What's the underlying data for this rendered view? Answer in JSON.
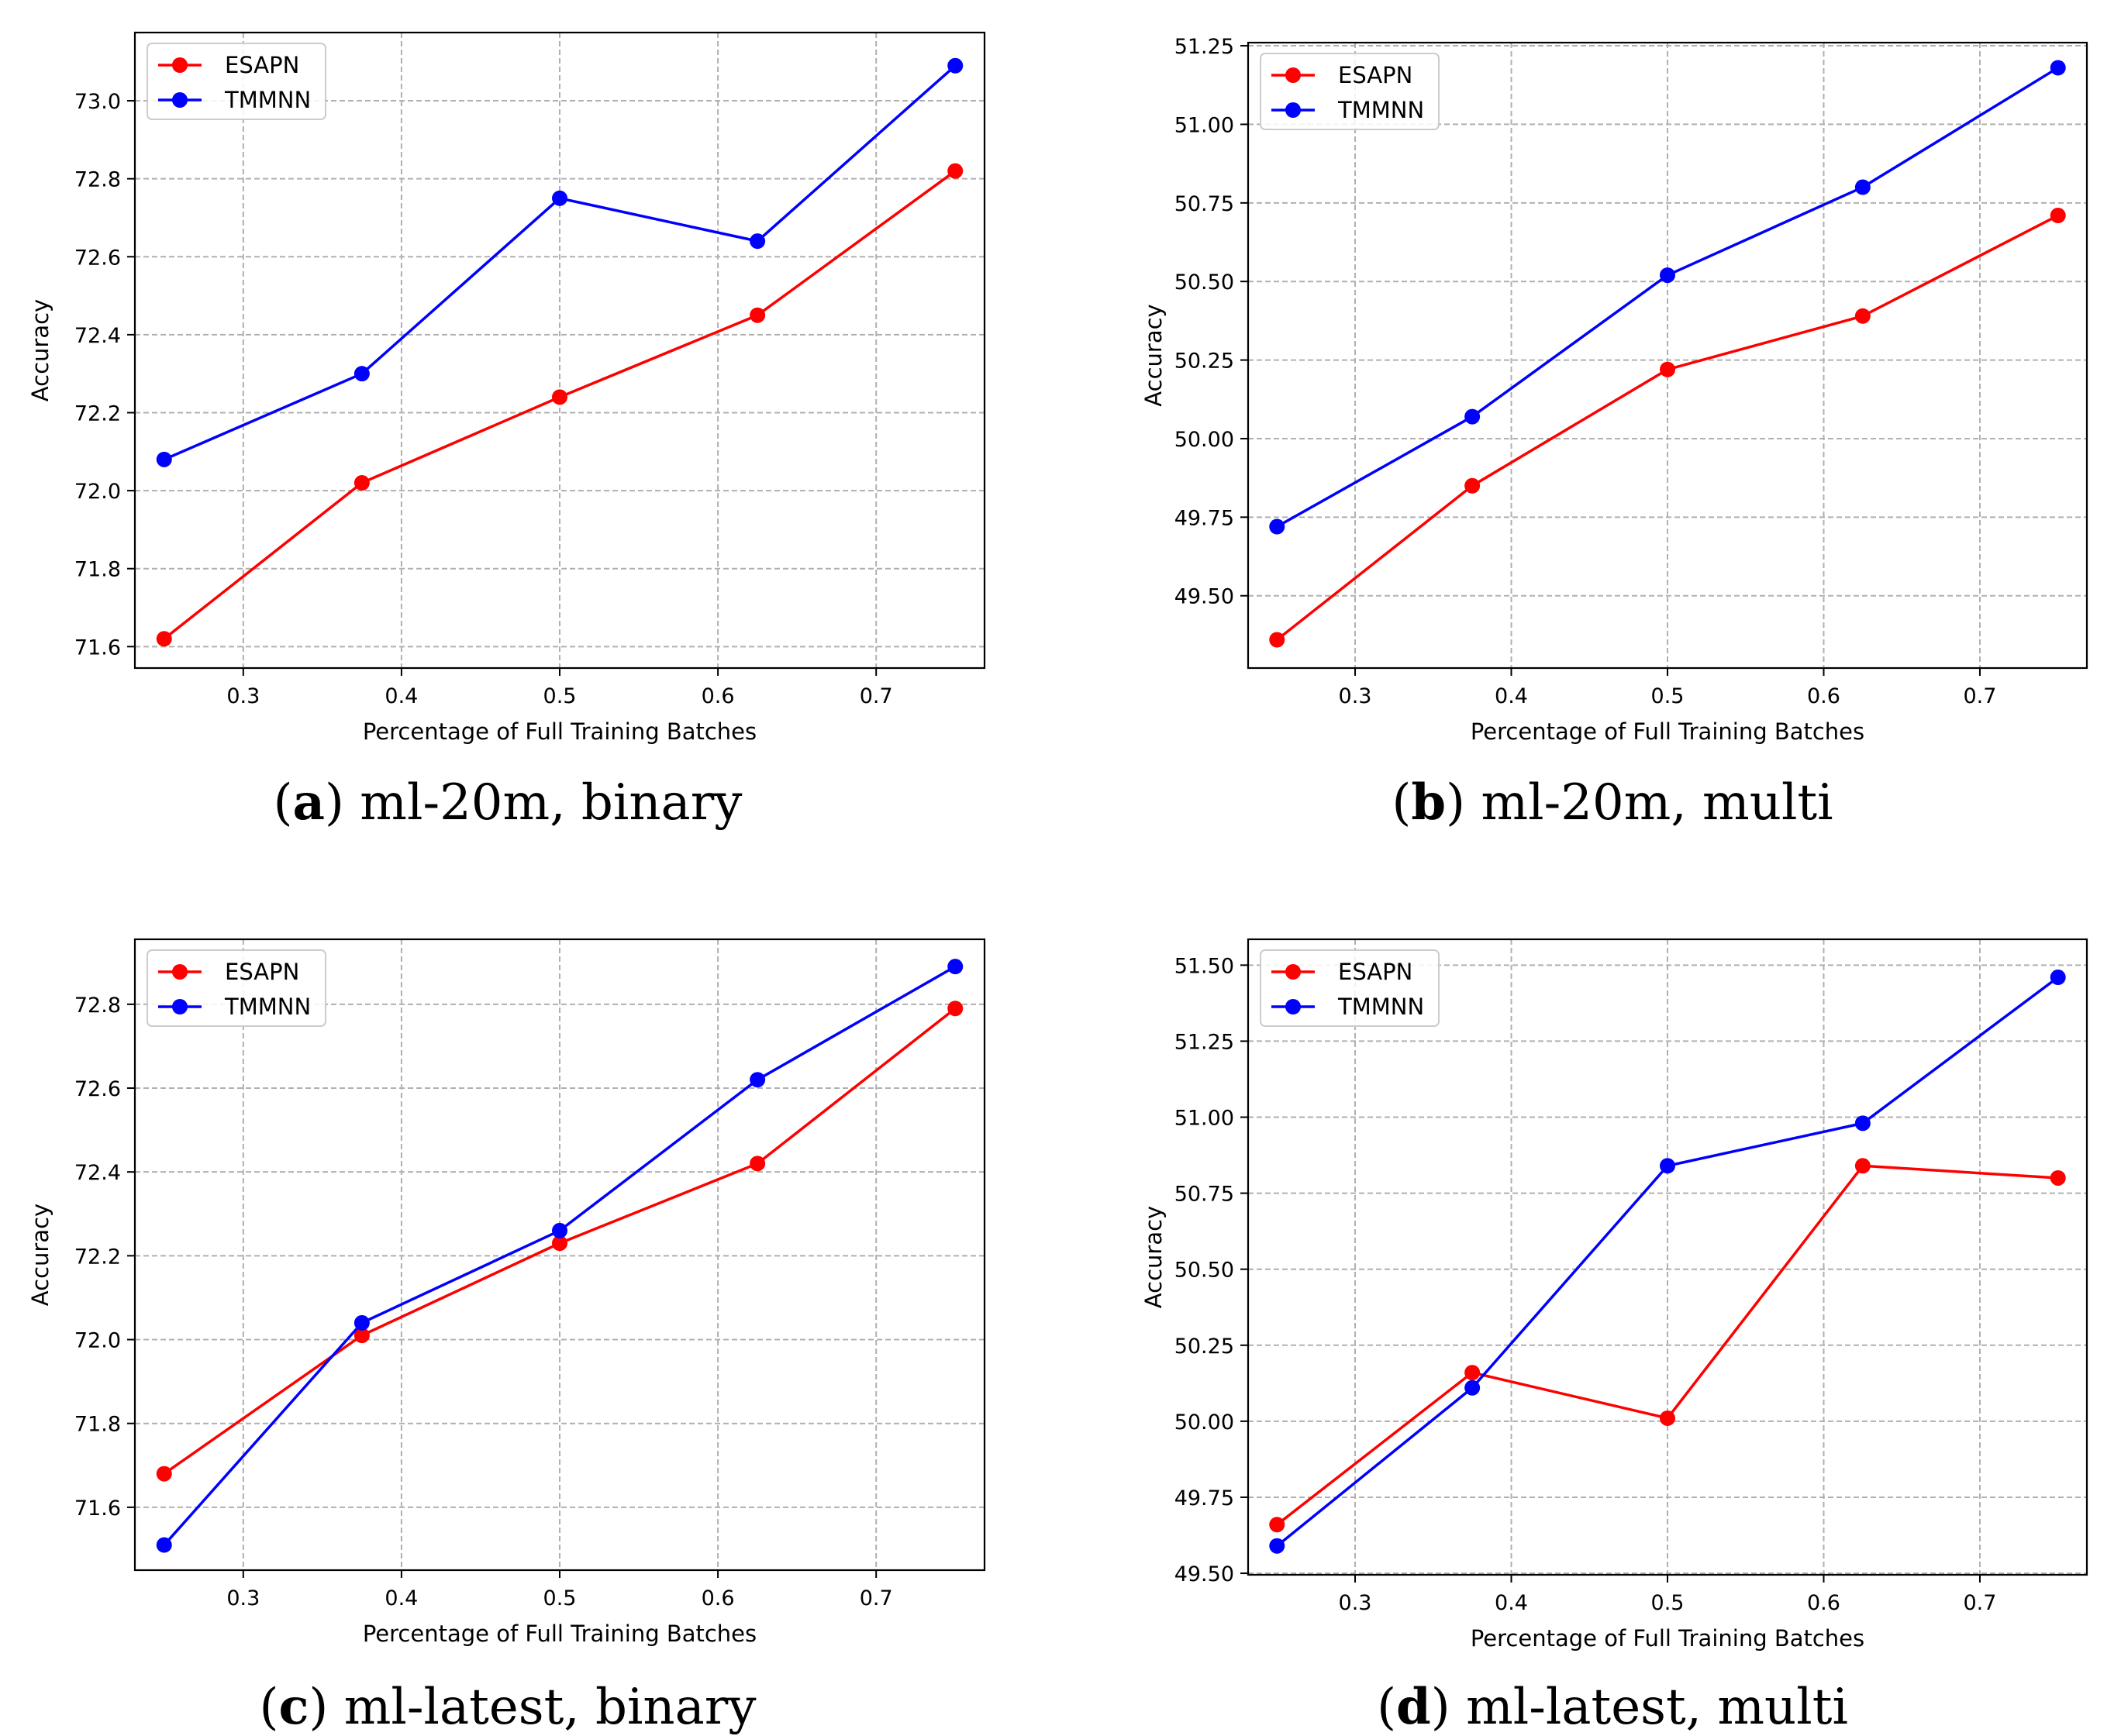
{
  "chart_data": [
    {
      "type": "line",
      "caption": {
        "open": "(",
        "letter": "a",
        "close": ")",
        "text": "ml-20m, binary"
      },
      "xlabel": "Percentage of Full Training Batches",
      "ylabel": "Accuracy",
      "x": [
        0.25,
        0.375,
        0.5,
        0.625,
        0.75
      ],
      "xlim": [
        0.2315,
        0.7685
      ],
      "ylim": [
        71.545,
        73.175
      ],
      "xticks": [
        0.3,
        0.4,
        0.5,
        0.6,
        0.7
      ],
      "xtick_labels": [
        "0.3",
        "0.4",
        "0.5",
        "0.6",
        "0.7"
      ],
      "yticks": [
        71.6,
        71.8,
        72.0,
        72.2,
        72.4,
        72.6,
        72.8,
        73.0
      ],
      "ytick_labels": [
        "71.6",
        "71.8",
        "72.0",
        "72.2",
        "72.4",
        "72.6",
        "72.8",
        "73.0"
      ],
      "grid": true,
      "legend_position": "upper-left",
      "series": [
        {
          "name": "ESAPN",
          "color": "#ff0000",
          "values": [
            71.62,
            72.02,
            72.24,
            72.45,
            72.82
          ]
        },
        {
          "name": "TMMNN",
          "color": "#0000ff",
          "values": [
            72.08,
            72.3,
            72.75,
            72.64,
            73.09
          ]
        }
      ]
    },
    {
      "type": "line",
      "caption": {
        "open": "(",
        "letter": "b",
        "close": ")",
        "text": "ml-20m, multi"
      },
      "xlabel": "Percentage of Full Training Batches",
      "ylabel": "Accuracy",
      "x": [
        0.25,
        0.375,
        0.5,
        0.625,
        0.75
      ],
      "xlim": [
        0.2315,
        0.7685
      ],
      "ylim": [
        49.27,
        51.26
      ],
      "xticks": [
        0.3,
        0.4,
        0.5,
        0.6,
        0.7
      ],
      "xtick_labels": [
        "0.3",
        "0.4",
        "0.5",
        "0.6",
        "0.7"
      ],
      "yticks": [
        49.5,
        49.75,
        50.0,
        50.25,
        50.5,
        50.75,
        51.0,
        51.25
      ],
      "ytick_labels": [
        "49.50",
        "49.75",
        "50.00",
        "50.25",
        "50.50",
        "50.75",
        "51.00",
        "51.25"
      ],
      "grid": true,
      "legend_position": "upper-left",
      "series": [
        {
          "name": "ESAPN",
          "color": "#ff0000",
          "values": [
            49.36,
            49.85,
            50.22,
            50.39,
            50.71
          ]
        },
        {
          "name": "TMMNN",
          "color": "#0000ff",
          "values": [
            49.72,
            50.07,
            50.52,
            50.8,
            51.18
          ]
        }
      ]
    },
    {
      "type": "line",
      "caption": {
        "open": "(",
        "letter": "c",
        "close": ")",
        "text": "ml-latest, binary"
      },
      "xlabel": "Percentage of Full Training Batches",
      "ylabel": "Accuracy",
      "x": [
        0.25,
        0.375,
        0.5,
        0.625,
        0.75
      ],
      "xlim": [
        0.2315,
        0.7685
      ],
      "ylim": [
        71.45,
        72.955
      ],
      "xticks": [
        0.3,
        0.4,
        0.5,
        0.6,
        0.7
      ],
      "xtick_labels": [
        "0.3",
        "0.4",
        "0.5",
        "0.6",
        "0.7"
      ],
      "yticks": [
        71.6,
        71.8,
        72.0,
        72.2,
        72.4,
        72.6,
        72.8
      ],
      "ytick_labels": [
        "71.6",
        "71.8",
        "72.0",
        "72.2",
        "72.4",
        "72.6",
        "72.8"
      ],
      "grid": true,
      "legend_position": "upper-left",
      "series": [
        {
          "name": "ESAPN",
          "color": "#ff0000",
          "values": [
            71.68,
            72.01,
            72.23,
            72.42,
            72.79
          ]
        },
        {
          "name": "TMMNN",
          "color": "#0000ff",
          "values": [
            71.51,
            72.04,
            72.26,
            72.62,
            72.89
          ]
        }
      ]
    },
    {
      "type": "line",
      "caption": {
        "open": "(",
        "letter": "d",
        "close": ")",
        "text": "ml-latest, multi"
      },
      "xlabel": "Percentage of Full Training Batches",
      "ylabel": "Accuracy",
      "x": [
        0.25,
        0.375,
        0.5,
        0.625,
        0.75
      ],
      "xlim": [
        0.2315,
        0.7685
      ],
      "ylim": [
        49.495,
        51.585
      ],
      "xticks": [
        0.3,
        0.4,
        0.5,
        0.6,
        0.7
      ],
      "xtick_labels": [
        "0.3",
        "0.4",
        "0.5",
        "0.6",
        "0.7"
      ],
      "yticks": [
        49.5,
        49.75,
        50.0,
        50.25,
        50.5,
        50.75,
        51.0,
        51.25,
        51.5
      ],
      "ytick_labels": [
        "49.50",
        "49.75",
        "50.00",
        "50.25",
        "50.50",
        "50.75",
        "51.00",
        "51.25",
        "51.50"
      ],
      "grid": true,
      "legend_position": "upper-left",
      "series": [
        {
          "name": "ESAPN",
          "color": "#ff0000",
          "values": [
            49.66,
            50.16,
            50.01,
            50.84,
            50.8
          ]
        },
        {
          "name": "TMMNN",
          "color": "#0000ff",
          "values": [
            49.59,
            50.11,
            50.84,
            50.98,
            51.46
          ]
        }
      ]
    }
  ]
}
